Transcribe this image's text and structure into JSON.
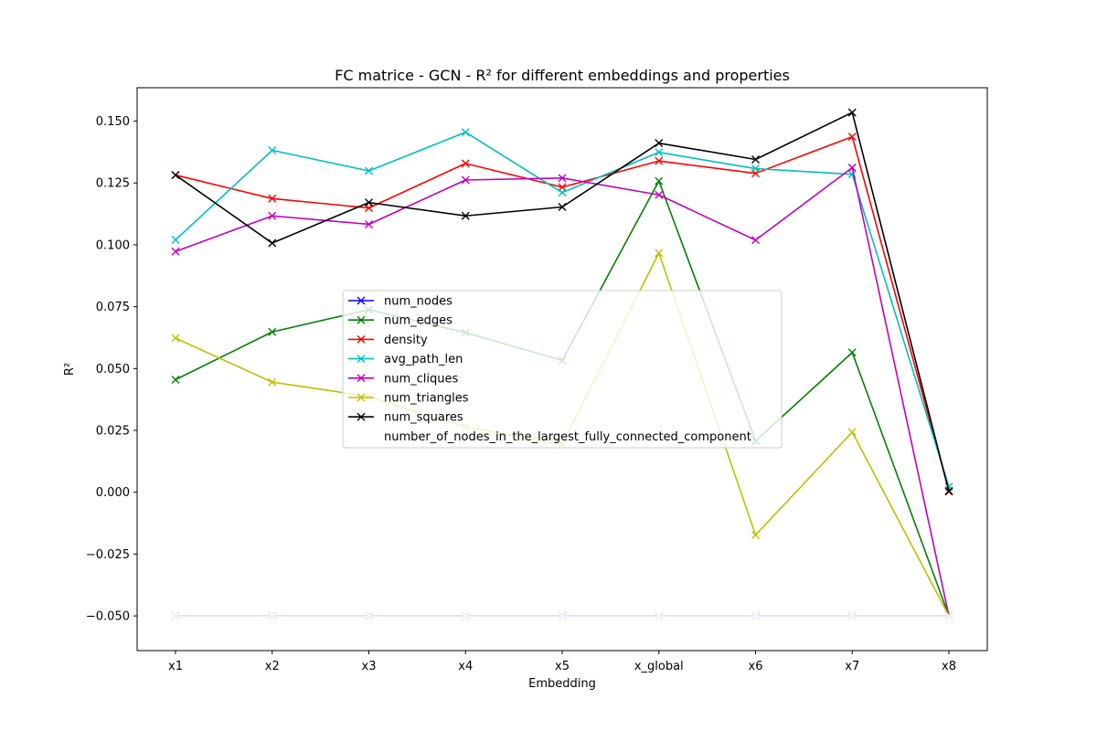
{
  "chart_data": {
    "type": "line",
    "title": "FC matrice - GCN - R² for different embeddings and properties",
    "xlabel": "Embedding",
    "ylabel": "R²",
    "categories": [
      "x1",
      "x2",
      "x3",
      "x4",
      "x5",
      "x_global",
      "x6",
      "x7",
      "x8"
    ],
    "ylim": [
      -0.064,
      0.1635
    ],
    "yticks": [
      -0.05,
      -0.025,
      0.0,
      0.025,
      0.05,
      0.075,
      0.1,
      0.125,
      0.15
    ],
    "ytick_labels": [
      "−0.050",
      "−0.025",
      "0.000",
      "0.025",
      "0.050",
      "0.075",
      "0.100",
      "0.125",
      "0.150"
    ],
    "grid": false,
    "legend_position": "center",
    "marker": "x",
    "series": [
      {
        "name": "num_nodes",
        "color": "#0000ff",
        "values": [
          -0.05,
          -0.05,
          -0.05,
          -0.05,
          -0.05,
          -0.05,
          -0.05,
          -0.05,
          -0.05
        ]
      },
      {
        "name": "num_edges",
        "color": "#008000",
        "values": [
          0.0455,
          0.0648,
          0.0738,
          0.0645,
          0.0533,
          0.1258,
          0.0207,
          0.0565,
          -0.05
        ]
      },
      {
        "name": "density",
        "color": "#ff0000",
        "values": [
          0.1282,
          0.1187,
          0.1149,
          0.1329,
          0.1233,
          0.1339,
          0.1289,
          0.1437,
          0.0007
        ]
      },
      {
        "name": "avg_path_len",
        "color": "#00bfbf",
        "values": [
          0.102,
          0.1382,
          0.1299,
          0.1455,
          0.1211,
          0.1374,
          0.1308,
          0.1285,
          0.0022
        ]
      },
      {
        "name": "num_cliques",
        "color": "#bf00bf",
        "values": [
          0.0973,
          0.1117,
          0.1083,
          0.1262,
          0.127,
          0.1202,
          0.1019,
          0.1312,
          -0.05
        ]
      },
      {
        "name": "num_triangles",
        "color": "#bfbf00",
        "values": [
          0.0623,
          0.0445,
          0.0387,
          0.0264,
          0.0193,
          0.0967,
          -0.0173,
          0.0243,
          -0.05
        ]
      },
      {
        "name": "num_squares",
        "color": "#000000",
        "values": [
          0.1282,
          0.1007,
          0.1171,
          0.1117,
          0.1153,
          0.1411,
          0.1345,
          0.1535,
          0.0003
        ]
      },
      {
        "name": "number_of_nodes_in_the_largest_fully_connected_component",
        "color": "#ffffff",
        "values": [
          -0.05,
          -0.05,
          -0.05,
          -0.05,
          -0.05,
          -0.05,
          -0.05,
          -0.05,
          -0.05
        ]
      }
    ]
  }
}
